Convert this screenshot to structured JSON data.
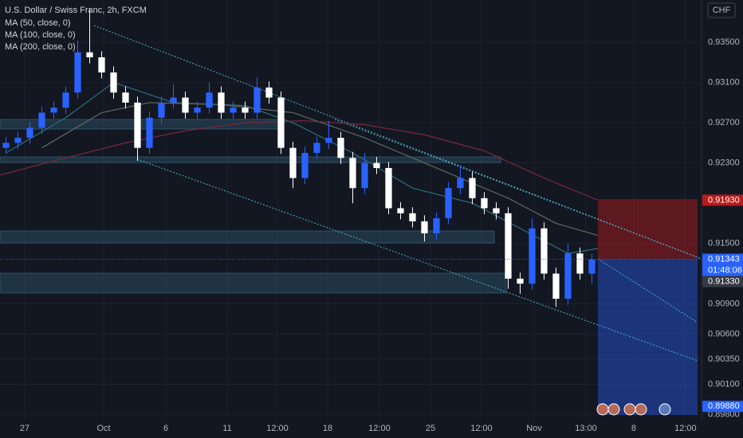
{
  "chart_data": {
    "type": "candlestick",
    "title": "U.S. Dollar / Swiss Franc, 2h, FXCM",
    "currency": "CHF",
    "up_color": "#2962ff",
    "down_color": "#ffffff",
    "xlim": [
      -0.5,
      58.17
    ],
    "ylim": [
      0.8974,
      0.9392
    ],
    "xticks": [
      {
        "value": 1.57,
        "label": "27"
      },
      {
        "value": 8.17,
        "label": "Oct"
      },
      {
        "value": 13.37,
        "label": "6"
      },
      {
        "value": 18.5,
        "label": "11"
      },
      {
        "value": 22.7,
        "label": "12:00"
      },
      {
        "value": 26.9,
        "label": "18"
      },
      {
        "value": 31.23,
        "label": "12:00"
      },
      {
        "value": 35.5,
        "label": "25"
      },
      {
        "value": 39.77,
        "label": "12:00"
      },
      {
        "value": 44.17,
        "label": "Nov"
      },
      {
        "value": 48.5,
        "label": "13:00"
      },
      {
        "value": 52.5,
        "label": "8"
      },
      {
        "value": 56.83,
        "label": "12:00"
      }
    ],
    "yticks": [
      {
        "value": 0.935,
        "label": "0.93500"
      },
      {
        "value": 0.931,
        "label": "0.93100"
      },
      {
        "value": 0.927,
        "label": "0.92700"
      },
      {
        "value": 0.923,
        "label": "0.92300"
      },
      {
        "value": 0.915,
        "label": "0.91500"
      },
      {
        "value": 0.909,
        "label": "0.90900"
      },
      {
        "value": 0.906,
        "label": "0.90600"
      },
      {
        "value": 0.9035,
        "label": "0.90350"
      },
      {
        "value": 0.901,
        "label": "0.90100"
      },
      {
        "value": 0.898,
        "label": "0.89800"
      }
    ],
    "price_labels": [
      {
        "value": 0.9193,
        "label": "0.91930",
        "color": "#b71c1c"
      },
      {
        "value": 0.91343,
        "label": "0.91343",
        "color": "#2962ff",
        "countdown": "01:48:06"
      },
      {
        "value": 0.9133,
        "label": "0.91330",
        "color": "#363a45"
      },
      {
        "value": 0.8988,
        "label": "0.89880",
        "color": "#2962ff"
      }
    ],
    "open": [
      0.9245,
      0.925,
      0.9255,
      0.9265,
      0.928,
      0.9285,
      0.93,
      0.934,
      0.9335,
      0.932,
      0.93,
      0.929,
      0.9245,
      0.9275,
      0.929,
      0.9295,
      0.928,
      0.9285,
      0.93,
      0.928,
      0.9285,
      0.928,
      0.9305,
      0.9295,
      0.9245,
      0.9215,
      0.924,
      0.925,
      0.9255,
      0.9235,
      0.9205,
      0.923,
      0.9225,
      0.9185,
      0.918,
      0.9172,
      0.916,
      0.9175,
      0.9205,
      0.9215,
      0.9195,
      0.9185,
      0.918,
      0.9115,
      0.911,
      0.9165,
      0.912,
      0.9095,
      0.914,
      0.912
    ],
    "high": [
      0.9256,
      0.9261,
      0.9271,
      0.9286,
      0.9291,
      0.9306,
      0.9352,
      0.9383,
      0.9341,
      0.9326,
      0.9306,
      0.9296,
      0.9281,
      0.9296,
      0.9308,
      0.9301,
      0.9291,
      0.931,
      0.9306,
      0.9291,
      0.9291,
      0.9315,
      0.9311,
      0.9301,
      0.9251,
      0.9246,
      0.9256,
      0.9272,
      0.9261,
      0.9241,
      0.924,
      0.9236,
      0.9231,
      0.9191,
      0.9186,
      0.9178,
      0.9181,
      0.9211,
      0.9228,
      0.9221,
      0.9201,
      0.9191,
      0.9186,
      0.9121,
      0.9175,
      0.9171,
      0.9126,
      0.915,
      0.9146,
      0.914
    ],
    "low": [
      0.9239,
      0.9244,
      0.9249,
      0.9259,
      0.9274,
      0.9279,
      0.9294,
      0.9329,
      0.9314,
      0.9294,
      0.9284,
      0.9232,
      0.9239,
      0.9269,
      0.9284,
      0.9274,
      0.9274,
      0.9279,
      0.9274,
      0.9274,
      0.9274,
      0.9274,
      0.9289,
      0.9239,
      0.9205,
      0.9209,
      0.9234,
      0.9244,
      0.9229,
      0.919,
      0.9199,
      0.9219,
      0.9179,
      0.9174,
      0.9166,
      0.9152,
      0.9154,
      0.9169,
      0.9199,
      0.9189,
      0.9179,
      0.9174,
      0.9105,
      0.91,
      0.9104,
      0.9114,
      0.9087,
      0.9089,
      0.9114,
      0.911
    ],
    "close": [
      0.925,
      0.9255,
      0.9265,
      0.928,
      0.9285,
      0.93,
      0.934,
      0.9335,
      0.932,
      0.93,
      0.929,
      0.9245,
      0.9275,
      0.929,
      0.9295,
      0.928,
      0.9285,
      0.93,
      0.928,
      0.9285,
      0.928,
      0.9305,
      0.9295,
      0.9245,
      0.9215,
      0.924,
      0.925,
      0.9255,
      0.9235,
      0.9205,
      0.923,
      0.9225,
      0.9185,
      0.918,
      0.9172,
      0.916,
      0.9175,
      0.9205,
      0.9215,
      0.9195,
      0.9185,
      0.918,
      0.9115,
      0.911,
      0.9165,
      0.912,
      0.9095,
      0.914,
      0.912,
      0.9134
    ],
    "series": [
      {
        "name": "MA (50, close, 0)",
        "color": "#2a6f80",
        "x": [
          0,
          5,
          9,
          14,
          20,
          24,
          29,
          34,
          39,
          43,
          47,
          49.5
        ],
        "values": [
          0.924,
          0.9275,
          0.931,
          0.929,
          0.9287,
          0.927,
          0.924,
          0.9205,
          0.919,
          0.9165,
          0.914,
          0.9145
        ]
      },
      {
        "name": "MA (100, close, 0)",
        "color": "#5d6b5e",
        "x": [
          3,
          8,
          12,
          18,
          24,
          30,
          36,
          42,
          46,
          49.5
        ],
        "values": [
          0.9245,
          0.928,
          0.929,
          0.9288,
          0.928,
          0.9255,
          0.9225,
          0.9195,
          0.917,
          0.9158
        ]
      },
      {
        "name": "MA (200, close, 0)",
        "color": "#7a2a3c",
        "x": [
          -0.5,
          5,
          10,
          15,
          20,
          25,
          30,
          35,
          40,
          45,
          49.5
        ],
        "values": [
          0.9218,
          0.9235,
          0.925,
          0.9262,
          0.927,
          0.9272,
          0.9268,
          0.9258,
          0.9242,
          0.9215,
          0.9193
        ]
      }
    ]
  }
}
